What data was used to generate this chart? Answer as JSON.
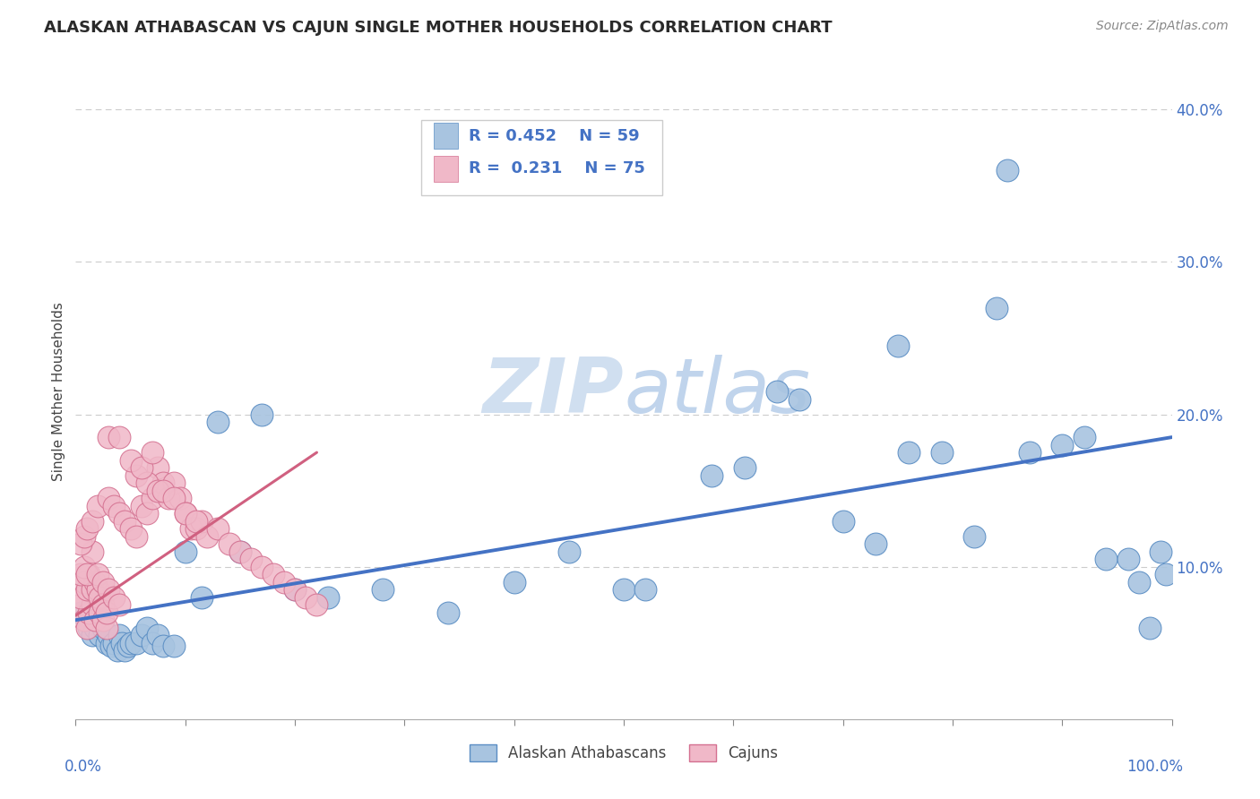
{
  "title": "ALASKAN ATHABASCAN VS CAJUN SINGLE MOTHER HOUSEHOLDS CORRELATION CHART",
  "source_text": "Source: ZipAtlas.com",
  "ylabel": "Single Mother Households",
  "color_blue": "#a8c4e0",
  "color_blue_edge": "#5b8ec4",
  "color_blue_line": "#4472c4",
  "color_pink": "#f0b8c8",
  "color_pink_edge": "#d47090",
  "color_pink_line": "#d06080",
  "color_text_blue": "#4472c4",
  "color_text_dark": "#2a2a2a",
  "background_color": "#ffffff",
  "grid_color": "#cccccc",
  "legend_box_color": "#e8e8e8",
  "watermark_color": "#d0dff0",
  "blue_x": [
    0.005,
    0.01,
    0.012,
    0.015,
    0.018,
    0.02,
    0.022,
    0.025,
    0.028,
    0.03,
    0.032,
    0.035,
    0.038,
    0.04,
    0.042,
    0.045,
    0.048,
    0.05,
    0.055,
    0.06,
    0.065,
    0.07,
    0.075,
    0.08,
    0.09,
    0.1,
    0.115,
    0.13,
    0.15,
    0.17,
    0.2,
    0.23,
    0.28,
    0.34,
    0.4,
    0.45,
    0.5,
    0.52,
    0.58,
    0.61,
    0.64,
    0.66,
    0.7,
    0.73,
    0.76,
    0.79,
    0.82,
    0.84,
    0.87,
    0.9,
    0.92,
    0.94,
    0.96,
    0.97,
    0.98,
    0.99,
    0.995,
    0.85,
    0.75
  ],
  "blue_y": [
    0.07,
    0.065,
    0.06,
    0.055,
    0.06,
    0.065,
    0.055,
    0.06,
    0.05,
    0.055,
    0.048,
    0.05,
    0.045,
    0.055,
    0.05,
    0.045,
    0.048,
    0.05,
    0.05,
    0.055,
    0.06,
    0.05,
    0.055,
    0.048,
    0.048,
    0.11,
    0.08,
    0.195,
    0.11,
    0.2,
    0.085,
    0.08,
    0.085,
    0.07,
    0.09,
    0.11,
    0.085,
    0.085,
    0.16,
    0.165,
    0.215,
    0.21,
    0.13,
    0.115,
    0.175,
    0.175,
    0.12,
    0.27,
    0.175,
    0.18,
    0.185,
    0.105,
    0.105,
    0.09,
    0.06,
    0.11,
    0.095,
    0.36,
    0.245
  ],
  "pink_x": [
    0.005,
    0.008,
    0.01,
    0.012,
    0.015,
    0.018,
    0.02,
    0.022,
    0.025,
    0.028,
    0.005,
    0.008,
    0.01,
    0.012,
    0.015,
    0.018,
    0.02,
    0.022,
    0.025,
    0.028,
    0.005,
    0.008,
    0.01,
    0.015,
    0.02,
    0.025,
    0.03,
    0.035,
    0.04,
    0.005,
    0.008,
    0.01,
    0.015,
    0.02,
    0.03,
    0.035,
    0.04,
    0.045,
    0.05,
    0.055,
    0.06,
    0.065,
    0.07,
    0.075,
    0.08,
    0.085,
    0.09,
    0.095,
    0.1,
    0.105,
    0.11,
    0.115,
    0.12,
    0.13,
    0.14,
    0.15,
    0.16,
    0.17,
    0.18,
    0.19,
    0.2,
    0.21,
    0.22,
    0.055,
    0.065,
    0.075,
    0.03,
    0.04,
    0.05,
    0.06,
    0.07,
    0.08,
    0.09,
    0.1,
    0.11
  ],
  "pink_y": [
    0.075,
    0.065,
    0.06,
    0.07,
    0.075,
    0.065,
    0.08,
    0.07,
    0.065,
    0.06,
    0.08,
    0.09,
    0.085,
    0.095,
    0.085,
    0.09,
    0.085,
    0.08,
    0.075,
    0.07,
    0.095,
    0.1,
    0.095,
    0.11,
    0.095,
    0.09,
    0.085,
    0.08,
    0.075,
    0.115,
    0.12,
    0.125,
    0.13,
    0.14,
    0.145,
    0.14,
    0.135,
    0.13,
    0.125,
    0.12,
    0.14,
    0.135,
    0.145,
    0.165,
    0.155,
    0.145,
    0.155,
    0.145,
    0.135,
    0.125,
    0.125,
    0.13,
    0.12,
    0.125,
    0.115,
    0.11,
    0.105,
    0.1,
    0.095,
    0.09,
    0.085,
    0.08,
    0.075,
    0.16,
    0.155,
    0.15,
    0.185,
    0.185,
    0.17,
    0.165,
    0.175,
    0.15,
    0.145,
    0.135,
    0.13
  ],
  "blue_line_x": [
    0.0,
    1.0
  ],
  "blue_line_y": [
    0.065,
    0.185
  ],
  "pink_line_x": [
    0.0,
    0.22
  ],
  "pink_line_y": [
    0.068,
    0.175
  ],
  "xlim": [
    0.0,
    1.0
  ],
  "ylim": [
    0.0,
    0.43
  ],
  "yticks": [
    0.0,
    0.1,
    0.2,
    0.3,
    0.4
  ],
  "ytick_labels": [
    "",
    "10.0%",
    "20.0%",
    "30.0%",
    "40.0%"
  ],
  "xtick_positions": [
    0.0,
    0.1,
    0.2,
    0.3,
    0.4,
    0.5,
    0.6,
    0.7,
    0.8,
    0.9,
    1.0
  ],
  "legend_r1_text": "R = 0.452",
  "legend_n1_text": "N = 59",
  "legend_r2_text": "R = 0.231",
  "legend_n2_text": "N = 75",
  "legend_label1": "Alaskan Athabascans",
  "legend_label2": "Cajuns"
}
